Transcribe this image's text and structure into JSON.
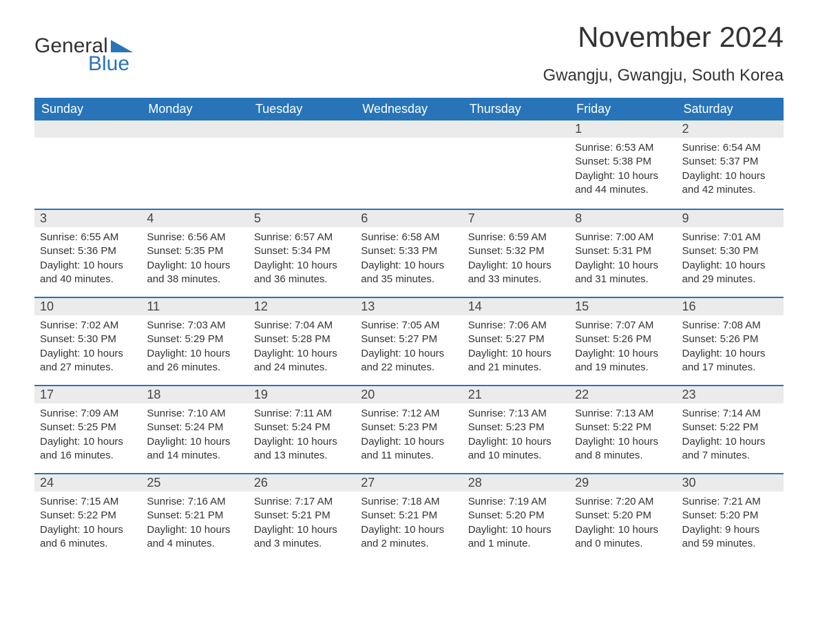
{
  "brand": {
    "line1": "General",
    "line2": "Blue",
    "brand_text_color": "#333333",
    "brand_blue": "#2774b9"
  },
  "header": {
    "title": "November 2024",
    "location": "Gwangju, Gwangju, South Korea"
  },
  "styles": {
    "header_bg": "#2774b9",
    "header_text": "#ffffff",
    "daynum_bg": "#ebebeb",
    "row_border": "#2774b9",
    "body_text": "#333333",
    "font_size_title": 42,
    "font_size_location": 24,
    "font_size_th": 18,
    "font_size_daynum": 18,
    "font_size_body": 15
  },
  "calendar": {
    "columns": [
      "Sunday",
      "Monday",
      "Tuesday",
      "Wednesday",
      "Thursday",
      "Friday",
      "Saturday"
    ],
    "weeks": [
      [
        null,
        null,
        null,
        null,
        null,
        {
          "n": "1",
          "sunrise": "6:53 AM",
          "sunset": "5:38 PM",
          "daylight": "10 hours and 44 minutes."
        },
        {
          "n": "2",
          "sunrise": "6:54 AM",
          "sunset": "5:37 PM",
          "daylight": "10 hours and 42 minutes."
        }
      ],
      [
        {
          "n": "3",
          "sunrise": "6:55 AM",
          "sunset": "5:36 PM",
          "daylight": "10 hours and 40 minutes."
        },
        {
          "n": "4",
          "sunrise": "6:56 AM",
          "sunset": "5:35 PM",
          "daylight": "10 hours and 38 minutes."
        },
        {
          "n": "5",
          "sunrise": "6:57 AM",
          "sunset": "5:34 PM",
          "daylight": "10 hours and 36 minutes."
        },
        {
          "n": "6",
          "sunrise": "6:58 AM",
          "sunset": "5:33 PM",
          "daylight": "10 hours and 35 minutes."
        },
        {
          "n": "7",
          "sunrise": "6:59 AM",
          "sunset": "5:32 PM",
          "daylight": "10 hours and 33 minutes."
        },
        {
          "n": "8",
          "sunrise": "7:00 AM",
          "sunset": "5:31 PM",
          "daylight": "10 hours and 31 minutes."
        },
        {
          "n": "9",
          "sunrise": "7:01 AM",
          "sunset": "5:30 PM",
          "daylight": "10 hours and 29 minutes."
        }
      ],
      [
        {
          "n": "10",
          "sunrise": "7:02 AM",
          "sunset": "5:30 PM",
          "daylight": "10 hours and 27 minutes."
        },
        {
          "n": "11",
          "sunrise": "7:03 AM",
          "sunset": "5:29 PM",
          "daylight": "10 hours and 26 minutes."
        },
        {
          "n": "12",
          "sunrise": "7:04 AM",
          "sunset": "5:28 PM",
          "daylight": "10 hours and 24 minutes."
        },
        {
          "n": "13",
          "sunrise": "7:05 AM",
          "sunset": "5:27 PM",
          "daylight": "10 hours and 22 minutes."
        },
        {
          "n": "14",
          "sunrise": "7:06 AM",
          "sunset": "5:27 PM",
          "daylight": "10 hours and 21 minutes."
        },
        {
          "n": "15",
          "sunrise": "7:07 AM",
          "sunset": "5:26 PM",
          "daylight": "10 hours and 19 minutes."
        },
        {
          "n": "16",
          "sunrise": "7:08 AM",
          "sunset": "5:26 PM",
          "daylight": "10 hours and 17 minutes."
        }
      ],
      [
        {
          "n": "17",
          "sunrise": "7:09 AM",
          "sunset": "5:25 PM",
          "daylight": "10 hours and 16 minutes."
        },
        {
          "n": "18",
          "sunrise": "7:10 AM",
          "sunset": "5:24 PM",
          "daylight": "10 hours and 14 minutes."
        },
        {
          "n": "19",
          "sunrise": "7:11 AM",
          "sunset": "5:24 PM",
          "daylight": "10 hours and 13 minutes."
        },
        {
          "n": "20",
          "sunrise": "7:12 AM",
          "sunset": "5:23 PM",
          "daylight": "10 hours and 11 minutes."
        },
        {
          "n": "21",
          "sunrise": "7:13 AM",
          "sunset": "5:23 PM",
          "daylight": "10 hours and 10 minutes."
        },
        {
          "n": "22",
          "sunrise": "7:13 AM",
          "sunset": "5:22 PM",
          "daylight": "10 hours and 8 minutes."
        },
        {
          "n": "23",
          "sunrise": "7:14 AM",
          "sunset": "5:22 PM",
          "daylight": "10 hours and 7 minutes."
        }
      ],
      [
        {
          "n": "24",
          "sunrise": "7:15 AM",
          "sunset": "5:22 PM",
          "daylight": "10 hours and 6 minutes."
        },
        {
          "n": "25",
          "sunrise": "7:16 AM",
          "sunset": "5:21 PM",
          "daylight": "10 hours and 4 minutes."
        },
        {
          "n": "26",
          "sunrise": "7:17 AM",
          "sunset": "5:21 PM",
          "daylight": "10 hours and 3 minutes."
        },
        {
          "n": "27",
          "sunrise": "7:18 AM",
          "sunset": "5:21 PM",
          "daylight": "10 hours and 2 minutes."
        },
        {
          "n": "28",
          "sunrise": "7:19 AM",
          "sunset": "5:20 PM",
          "daylight": "10 hours and 1 minute."
        },
        {
          "n": "29",
          "sunrise": "7:20 AM",
          "sunset": "5:20 PM",
          "daylight": "10 hours and 0 minutes."
        },
        {
          "n": "30",
          "sunrise": "7:21 AM",
          "sunset": "5:20 PM",
          "daylight": "9 hours and 59 minutes."
        }
      ]
    ],
    "labels": {
      "sunrise": "Sunrise:",
      "sunset": "Sunset:",
      "daylight": "Daylight:"
    }
  }
}
